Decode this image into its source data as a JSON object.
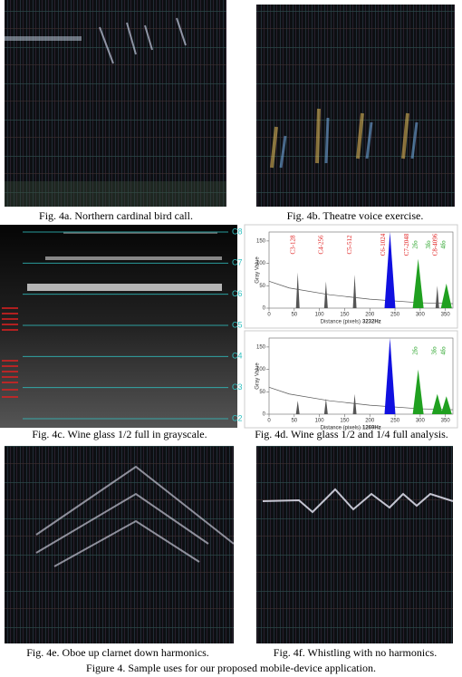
{
  "panels": {
    "a": {
      "caption": "Fig. 4a. Northern cardinal bird call."
    },
    "b": {
      "caption": "Fig. 4b. Theatre voice exercise."
    },
    "c": {
      "caption": "Fig. 4c. Wine glass 1/2 full in grayscale.",
      "note_labels": [
        "C8",
        "C7",
        "C6",
        "C5",
        "C4",
        "C3",
        "C2"
      ]
    },
    "d": {
      "caption": "Fig. 4d. Wine glass 1/2 and 1/4 full analysis.",
      "plots": [
        {
          "xlabel": "Distance (pixels)",
          "ylabel": "Gray Value",
          "frequency": "3232Hz",
          "xlim": [
            0,
            365
          ],
          "ylim": [
            0,
            170
          ],
          "xticks": [
            0,
            50,
            100,
            150,
            200,
            250,
            300,
            350
          ],
          "yticks": [
            0,
            50,
            100,
            150
          ],
          "peaks": [
            {
              "x": 57,
              "y": 80,
              "color": "#555555"
            },
            {
              "x": 113,
              "y": 60,
              "color": "#555555"
            },
            {
              "x": 170,
              "y": 75,
              "color": "#555555"
            },
            {
              "x": 240,
              "y": 170,
              "color": "#1010e0"
            },
            {
              "x": 296,
              "y": 110,
              "color": "#20a020"
            },
            {
              "x": 334,
              "y": 50,
              "color": "#555555"
            },
            {
              "x": 352,
              "y": 55,
              "color": "#20a020"
            }
          ],
          "annotations": [
            {
              "text": "C3-128",
              "x": 57,
              "color": "#e02020"
            },
            {
              "text": "C4-256",
              "x": 113,
              "color": "#e02020"
            },
            {
              "text": "C5-512",
              "x": 170,
              "color": "#e02020"
            },
            {
              "text": "C6-1024",
              "x": 236,
              "color": "#e02020"
            },
            {
              "text": "C7-2048",
              "x": 283,
              "color": "#e02020"
            },
            {
              "text": "2fo",
              "x": 300,
              "color": "#20a020"
            },
            {
              "text": "3fo",
              "x": 326,
              "color": "#20a020"
            },
            {
              "text": "C8-4096",
              "x": 340,
              "color": "#e02020"
            },
            {
              "text": "4fo",
              "x": 356,
              "color": "#20a020"
            }
          ]
        },
        {
          "xlabel": "Distance (pixels)",
          "ylabel": "Gray Value",
          "frequency": "1269Hz",
          "xlim": [
            0,
            365
          ],
          "ylim": [
            0,
            170
          ],
          "xticks": [
            0,
            50,
            100,
            150,
            200,
            250,
            300,
            350
          ],
          "yticks": [
            0,
            50,
            100,
            150
          ],
          "peaks": [
            {
              "x": 57,
              "y": 30,
              "color": "#555555"
            },
            {
              "x": 113,
              "y": 35,
              "color": "#555555"
            },
            {
              "x": 170,
              "y": 45,
              "color": "#555555"
            },
            {
              "x": 240,
              "y": 170,
              "color": "#1010e0"
            },
            {
              "x": 296,
              "y": 100,
              "color": "#20a020"
            },
            {
              "x": 334,
              "y": 45,
              "color": "#20a020"
            },
            {
              "x": 352,
              "y": 40,
              "color": "#20a020"
            }
          ],
          "annotations": [
            {
              "text": "2fo",
              "x": 300,
              "color": "#20a020"
            },
            {
              "text": "3fo",
              "x": 338,
              "color": "#20a020"
            },
            {
              "text": "4fo",
              "x": 356,
              "color": "#20a020"
            }
          ]
        }
      ]
    },
    "e": {
      "caption": "Fig. 4e. Oboe up clarnet down harmonics."
    },
    "f": {
      "caption": "Fig. 4f. Whistling with no harmonics."
    }
  },
  "figure_caption": "Figure 4. Sample uses for our proposed mobile-device application."
}
